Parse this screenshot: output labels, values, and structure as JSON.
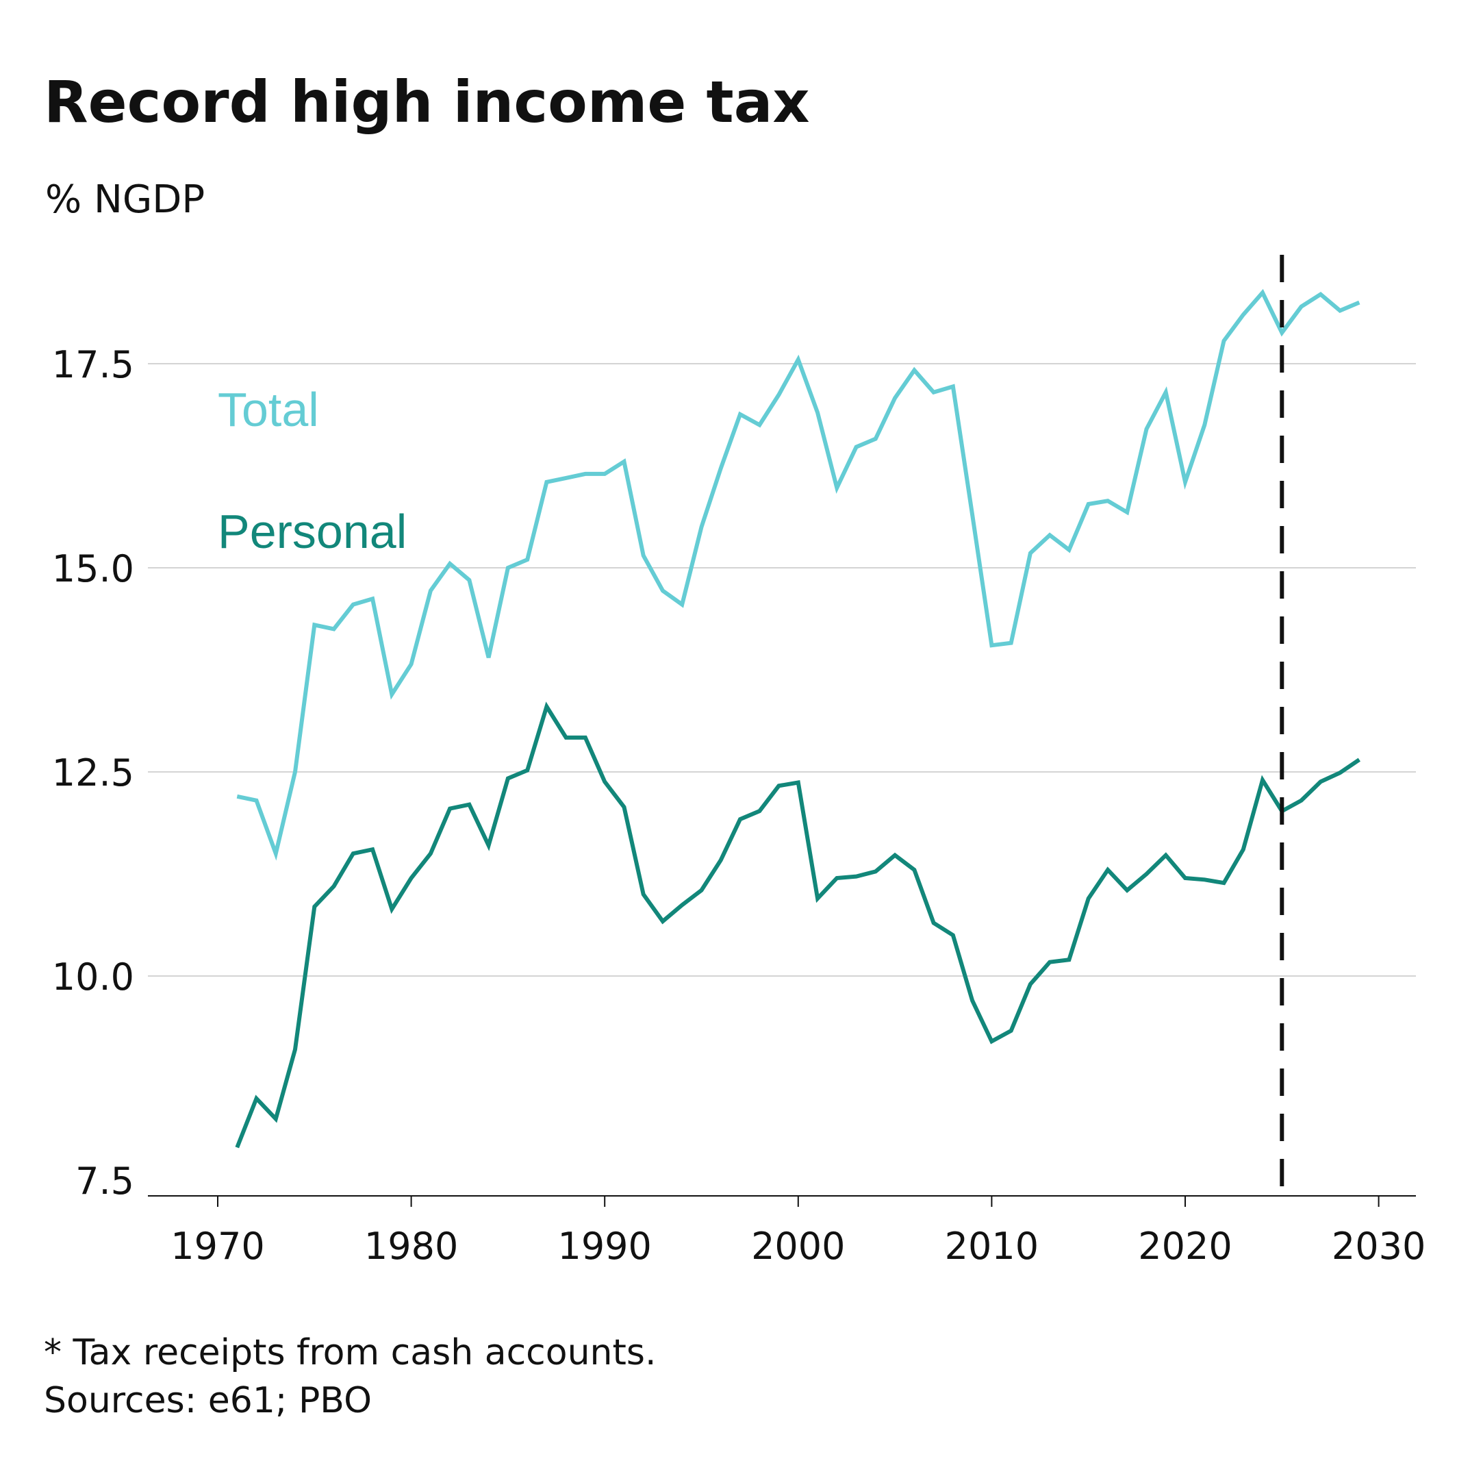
{
  "chart_data": {
    "type": "line",
    "title": "Record high income tax",
    "subtitle": "% NGDP",
    "footnote": "* Tax receipts from cash accounts.",
    "source": "Sources: e61; PBO",
    "x_range": [
      1967,
      2030
    ],
    "ylim": [
      7.5,
      19.5
    ],
    "x_ticks": [
      1970,
      1980,
      1990,
      2000,
      2010,
      2020,
      2030
    ],
    "x_tick_labels": [
      "1970",
      "1980",
      "1990",
      "2000",
      "2010",
      "2020",
      "2030"
    ],
    "y_ticks": [
      7.5,
      10.0,
      12.5,
      15.0,
      17.5
    ],
    "y_tick_labels": [
      "7.5",
      "10.0",
      "12.5",
      "15.0",
      "17.5"
    ],
    "grid": "horizontal",
    "vline_x": 2025,
    "x": [
      1971,
      1972,
      1973,
      1974,
      1975,
      1976,
      1977,
      1978,
      1979,
      1980,
      1981,
      1982,
      1983,
      1984,
      1985,
      1986,
      1987,
      1988,
      1989,
      1990,
      1991,
      1992,
      1993,
      1994,
      1995,
      1996,
      1997,
      1998,
      1999,
      2000,
      2001,
      2002,
      2003,
      2004,
      2005,
      2006,
      2007,
      2008,
      2009,
      2010,
      2011,
      2012,
      2013,
      2014,
      2015,
      2016,
      2017,
      2018,
      2019,
      2020,
      2021,
      2022,
      2023,
      2024,
      2025,
      2026,
      2027,
      2028,
      2029
    ],
    "series": [
      {
        "name": "Total",
        "color": "#64CCD4",
        "values": [
          12.2,
          12.15,
          11.5,
          12.5,
          14.3,
          14.25,
          14.55,
          14.62,
          13.45,
          13.82,
          14.72,
          15.05,
          14.85,
          13.9,
          15.0,
          15.1,
          16.05,
          16.1,
          16.15,
          16.15,
          16.3,
          15.15,
          14.72,
          14.55,
          15.5,
          16.22,
          16.88,
          16.75,
          17.12,
          17.55,
          16.9,
          15.98,
          16.48,
          16.58,
          17.08,
          17.42,
          17.15,
          17.22,
          15.65,
          14.05,
          14.08,
          15.18,
          15.4,
          15.22,
          15.78,
          15.82,
          15.68,
          16.7,
          17.15,
          16.05,
          16.75,
          17.78,
          18.1,
          18.37,
          17.88,
          18.2,
          18.35,
          18.15,
          18.25
        ]
      },
      {
        "name": "Personal",
        "color": "#12877A",
        "values": [
          7.9,
          8.5,
          8.25,
          9.1,
          10.85,
          11.1,
          11.5,
          11.55,
          10.82,
          11.2,
          11.5,
          12.05,
          12.1,
          11.6,
          12.42,
          12.52,
          13.3,
          12.92,
          12.92,
          12.38,
          12.07,
          11.0,
          10.67,
          10.87,
          11.05,
          11.42,
          11.92,
          12.02,
          12.33,
          12.37,
          10.95,
          11.2,
          11.22,
          11.28,
          11.48,
          11.3,
          10.65,
          10.5,
          9.7,
          9.2,
          9.33,
          9.9,
          10.17,
          10.2,
          10.95,
          11.3,
          11.05,
          11.25,
          11.48,
          11.2,
          11.18,
          11.14,
          11.55,
          12.4,
          12.02,
          12.15,
          12.38,
          12.49,
          12.65
        ]
      }
    ]
  }
}
